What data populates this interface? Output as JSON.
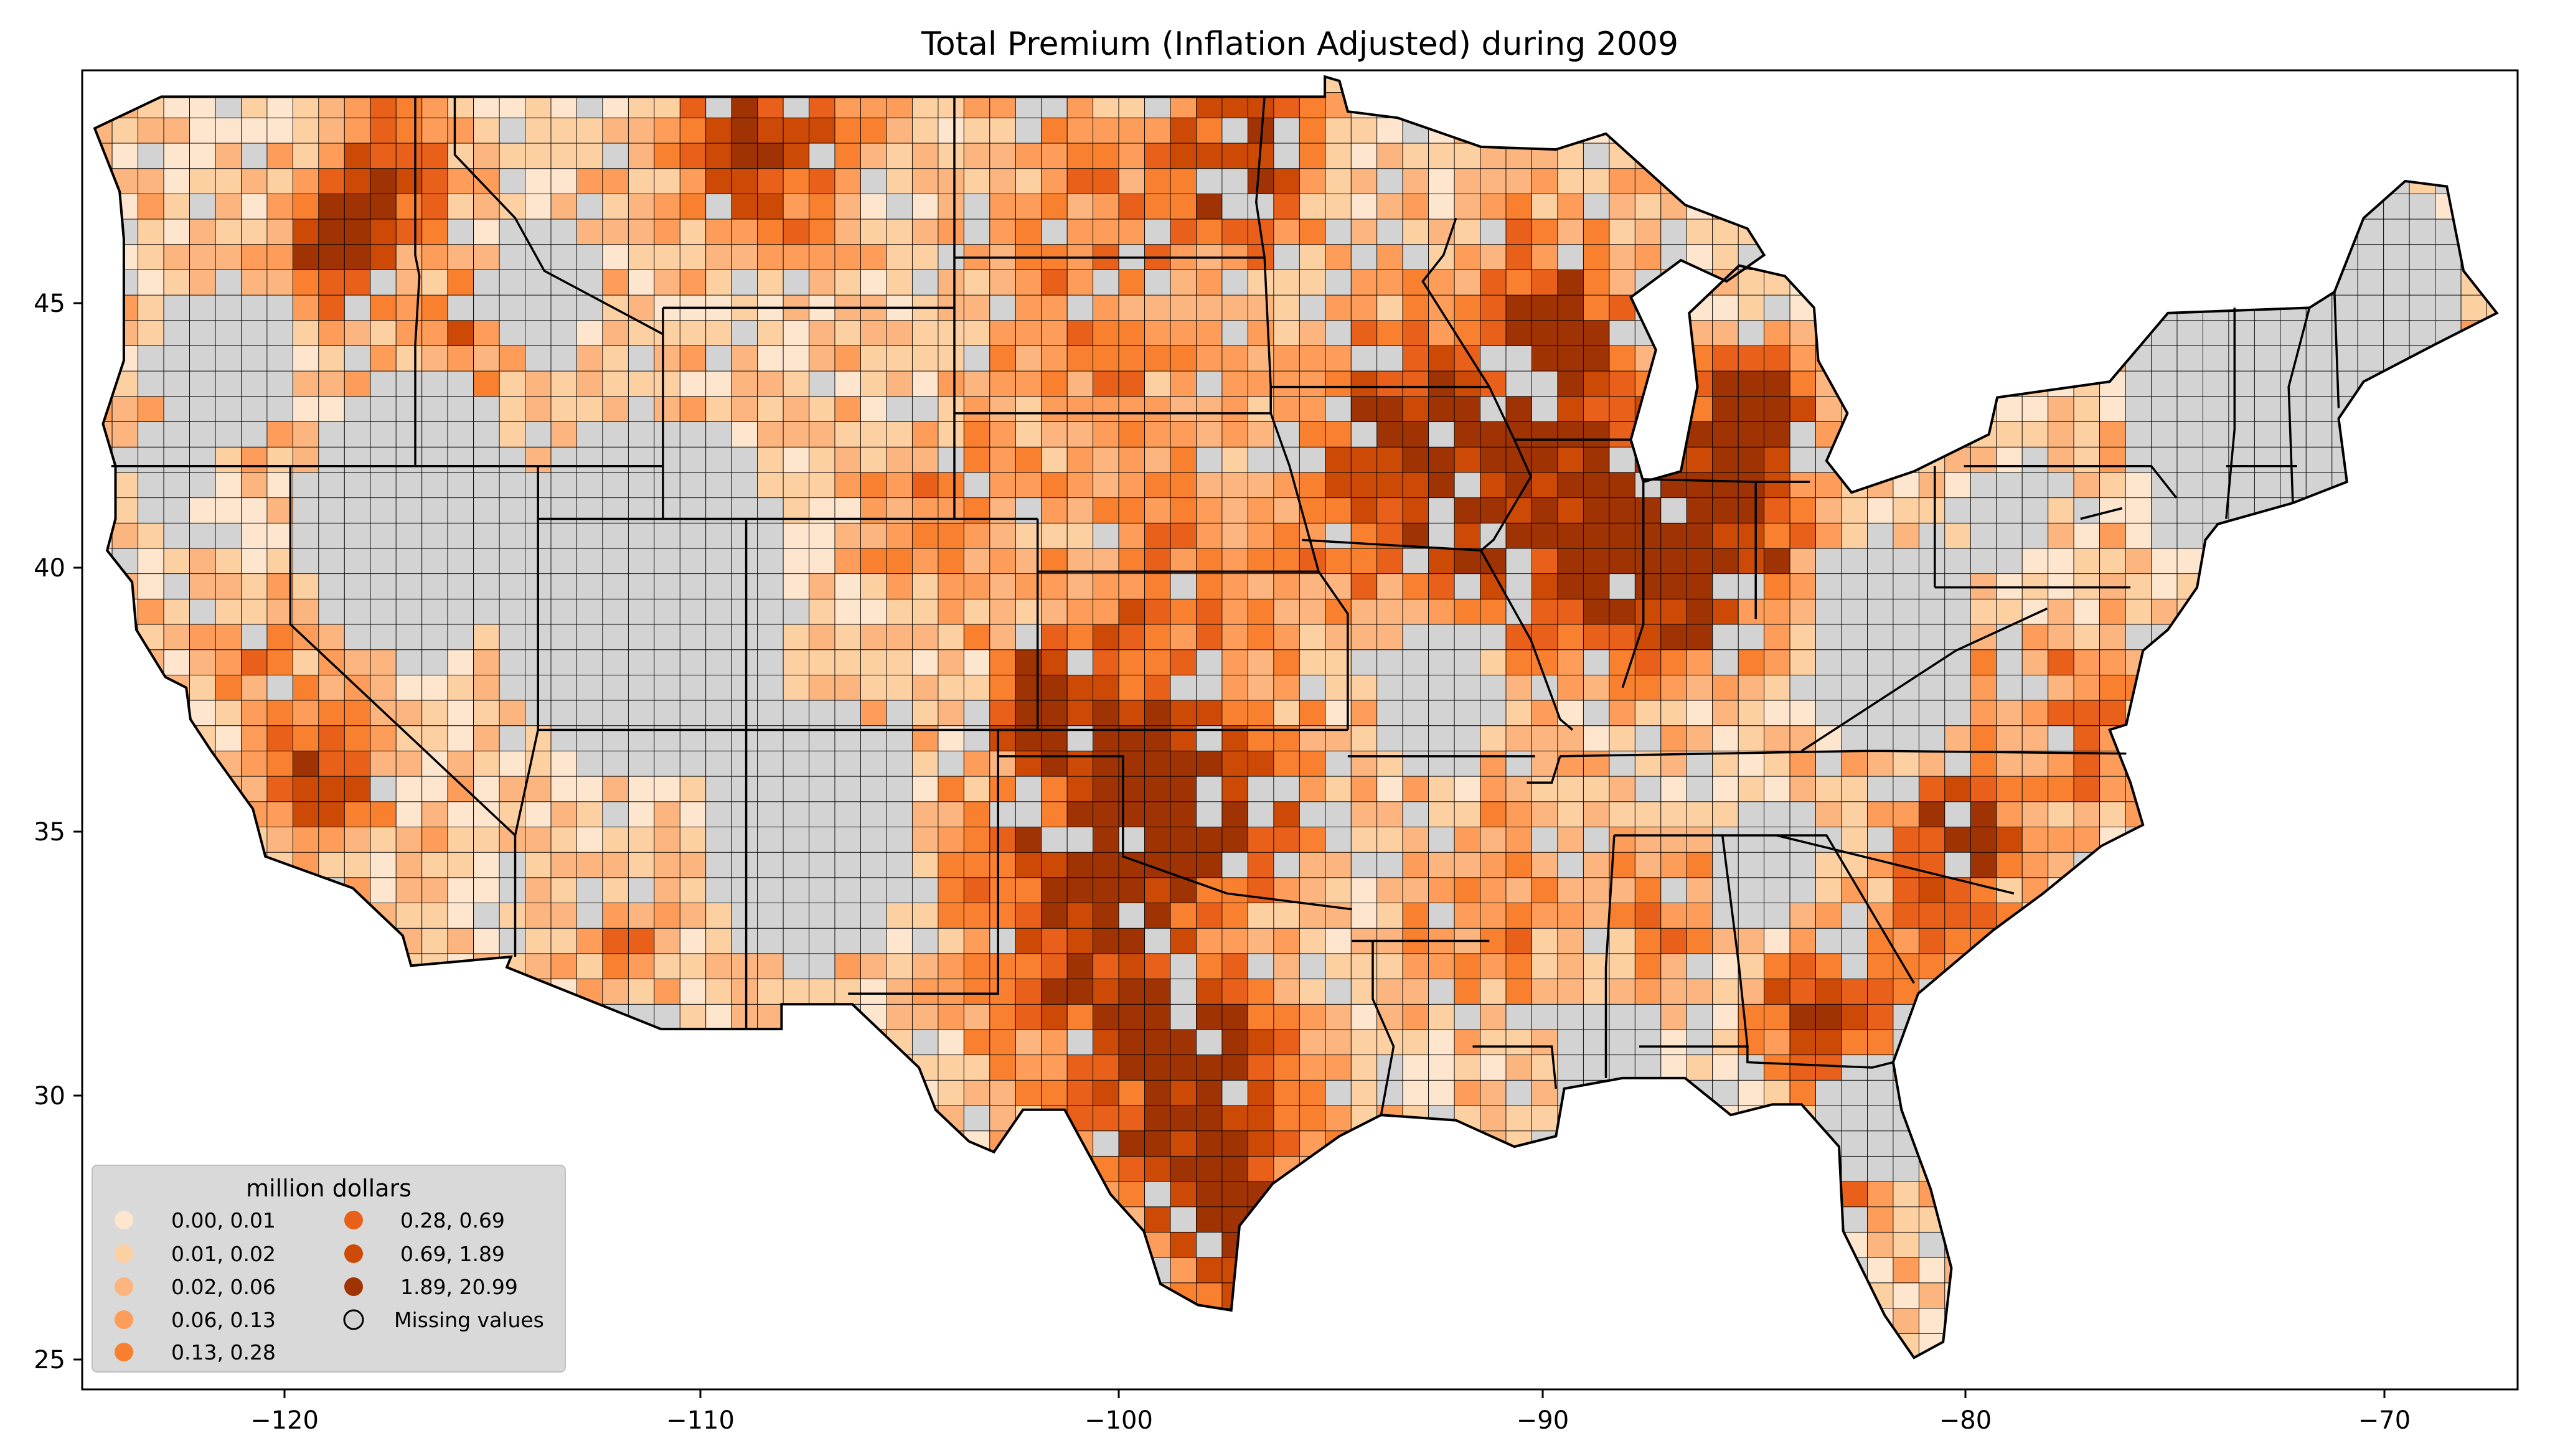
{
  "title": "Total  Premium  (Inflation Adjusted) during 2009",
  "x_ticks": [
    "−120",
    "−110",
    "−100",
    "−90",
    "−80",
    "−70"
  ],
  "y_ticks": [
    "45",
    "40",
    "35",
    "30",
    "25"
  ],
  "legend": {
    "title": "million dollars",
    "items": [
      {
        "label": "0.00,  0.01",
        "color": "#fee6ce"
      },
      {
        "label": "0.01,  0.02",
        "color": "#fdd0a2"
      },
      {
        "label": "0.02,  0.06",
        "color": "#fdb57f"
      },
      {
        "label": "0.06,  0.13",
        "color": "#fd9d59"
      },
      {
        "label": "0.13,  0.28",
        "color": "#f9802f"
      },
      {
        "label": "0.28,  0.69",
        "color": "#e8601a"
      },
      {
        "label": "0.69,  1.89",
        "color": "#cc4a06"
      },
      {
        "label": "1.89, 20.99",
        "color": "#9f3303"
      },
      {
        "label": "Missing values",
        "color": "#d3d3d3"
      }
    ]
  },
  "chart_data": {
    "type": "choropleth",
    "title": "Total  Premium  (Inflation Adjusted) during 2009",
    "xlim": [
      -125,
      -66.5
    ],
    "ylim": [
      24.5,
      49.5
    ],
    "x_ticks": [
      -120,
      -110,
      -100,
      -90,
      -80,
      -70
    ],
    "y_ticks": [
      25,
      30,
      35,
      40,
      45
    ],
    "legend_title": "million dollars",
    "legend_position": "lower-left",
    "bins": [
      {
        "range": [
          0.0,
          0.01
        ],
        "color": "#fee6ce"
      },
      {
        "range": [
          0.01,
          0.02
        ],
        "color": "#fdd0a2"
      },
      {
        "range": [
          0.02,
          0.06
        ],
        "color": "#fdb57f"
      },
      {
        "range": [
          0.06,
          0.13
        ],
        "color": "#fd9d59"
      },
      {
        "range": [
          0.13,
          0.28
        ],
        "color": "#f9802f"
      },
      {
        "range": [
          0.28,
          0.69
        ],
        "color": "#e8601a"
      },
      {
        "range": [
          0.69,
          1.89
        ],
        "color": "#cc4a06"
      },
      {
        "range": [
          1.89,
          20.99
        ],
        "color": "#9f3303"
      }
    ],
    "missing_color": "#d3d3d3"
  }
}
